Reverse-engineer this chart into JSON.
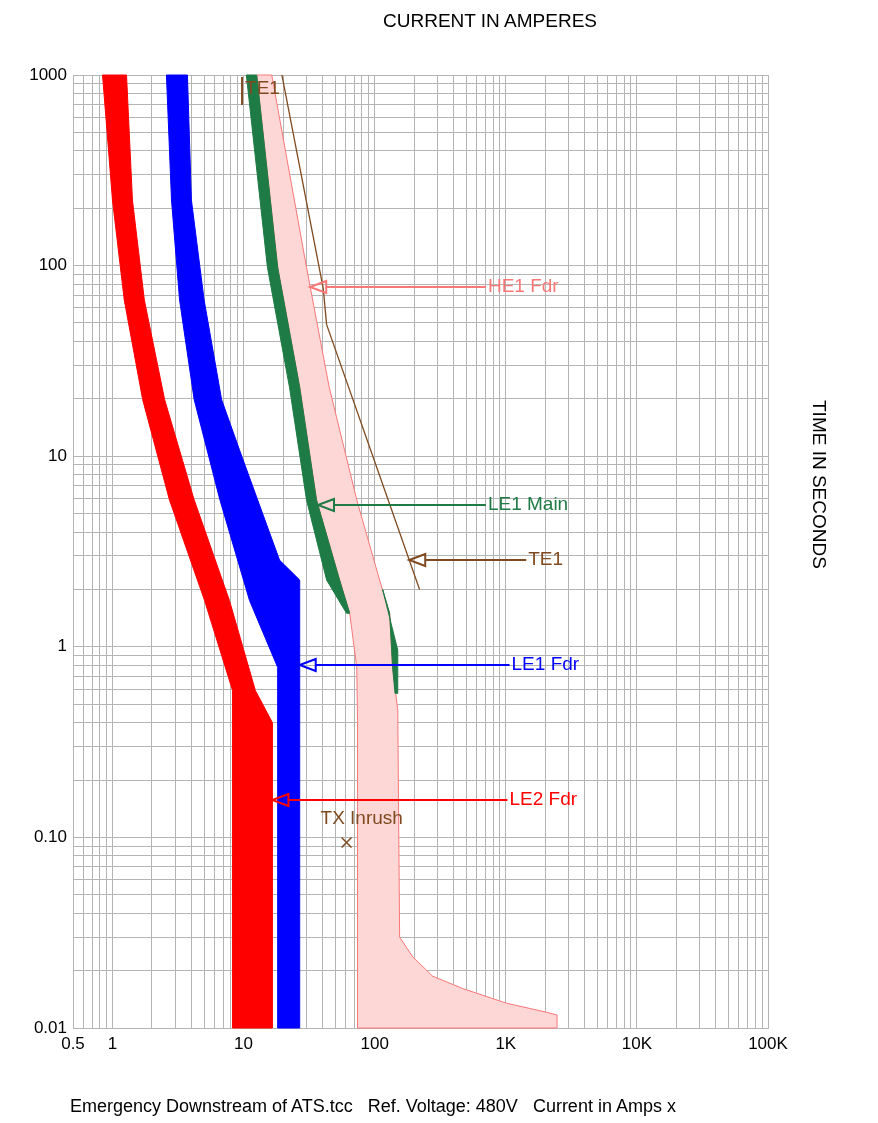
{
  "chart_data": {
    "type": "area",
    "xlabel": "CURRENT IN AMPERES",
    "ylabel": "TIME IN SECONDS",
    "log": "xy",
    "grid": true,
    "xlim": [
      0.5,
      100000
    ],
    "ylim": [
      0.01,
      1000
    ],
    "xticks": [
      0.5,
      {
        "value": 0.6,
        "label": null
      },
      {
        "value": 0.7,
        "label": null
      },
      {
        "value": 0.8,
        "label": null
      },
      {
        "value": 0.9,
        "label": null
      },
      1,
      {
        "value": 2,
        "label": null
      },
      {
        "value": 3,
        "label": null
      },
      {
        "value": 4,
        "label": null
      },
      {
        "value": 5,
        "label": null
      },
      {
        "value": 6,
        "label": null
      },
      {
        "value": 7,
        "label": null
      },
      {
        "value": 8,
        "label": null
      },
      {
        "value": 9,
        "label": null
      },
      10,
      {
        "value": 20,
        "label": null
      },
      {
        "value": 30,
        "label": null
      },
      {
        "value": 40,
        "label": null
      },
      {
        "value": 50,
        "label": null
      },
      {
        "value": 60,
        "label": null
      },
      {
        "value": 70,
        "label": null
      },
      {
        "value": 80,
        "label": null
      },
      {
        "value": 90,
        "label": null
      },
      100,
      {
        "value": 200,
        "label": null
      },
      {
        "value": 300,
        "label": null
      },
      {
        "value": 400,
        "label": null
      },
      {
        "value": 500,
        "label": null
      },
      {
        "value": 600,
        "label": null
      },
      {
        "value": 700,
        "label": null
      },
      {
        "value": 800,
        "label": null
      },
      {
        "value": 900,
        "label": null
      },
      {
        "value": 1000,
        "label": "1K"
      },
      {
        "value": 2000,
        "label": null
      },
      {
        "value": 3000,
        "label": null
      },
      {
        "value": 4000,
        "label": null
      },
      {
        "value": 5000,
        "label": null
      },
      {
        "value": 6000,
        "label": null
      },
      {
        "value": 7000,
        "label": null
      },
      {
        "value": 8000,
        "label": null
      },
      {
        "value": 9000,
        "label": null
      },
      {
        "value": 10000,
        "label": "10K"
      },
      {
        "value": 20000,
        "label": null
      },
      {
        "value": 30000,
        "label": null
      },
      {
        "value": 40000,
        "label": null
      },
      {
        "value": 50000,
        "label": null
      },
      {
        "value": 60000,
        "label": null
      },
      {
        "value": 70000,
        "label": null
      },
      {
        "value": 80000,
        "label": null
      },
      {
        "value": 90000,
        "label": null
      },
      {
        "value": 100000,
        "label": "100K"
      }
    ],
    "yticks": [
      0.01,
      {
        "value": 0.02,
        "label": null
      },
      {
        "value": 0.03,
        "label": null
      },
      {
        "value": 0.04,
        "label": null
      },
      {
        "value": 0.05,
        "label": null
      },
      {
        "value": 0.06,
        "label": null
      },
      {
        "value": 0.07,
        "label": null
      },
      {
        "value": 0.08,
        "label": null
      },
      {
        "value": 0.09,
        "label": null
      },
      {
        "value": 0.1,
        "label": "0.10"
      },
      {
        "value": 0.2,
        "label": null
      },
      {
        "value": 0.3,
        "label": null
      },
      {
        "value": 0.4,
        "label": null
      },
      {
        "value": 0.5,
        "label": null
      },
      {
        "value": 0.6,
        "label": null
      },
      {
        "value": 0.7,
        "label": null
      },
      {
        "value": 0.8,
        "label": null
      },
      {
        "value": 0.9,
        "label": null
      },
      1,
      {
        "value": 2,
        "label": null
      },
      {
        "value": 3,
        "label": null
      },
      {
        "value": 4,
        "label": null
      },
      {
        "value": 5,
        "label": null
      },
      {
        "value": 6,
        "label": null
      },
      {
        "value": 7,
        "label": null
      },
      {
        "value": 8,
        "label": null
      },
      {
        "value": 9,
        "label": null
      },
      10,
      {
        "value": 20,
        "label": null
      },
      {
        "value": 30,
        "label": null
      },
      {
        "value": 40,
        "label": null
      },
      {
        "value": 50,
        "label": null
      },
      {
        "value": 60,
        "label": null
      },
      {
        "value": 70,
        "label": null
      },
      {
        "value": 80,
        "label": null
      },
      {
        "value": 90,
        "label": null
      },
      100,
      {
        "value": 200,
        "label": null
      },
      {
        "value": 300,
        "label": null
      },
      {
        "value": 400,
        "label": null
      },
      {
        "value": 500,
        "label": null
      },
      {
        "value": 600,
        "label": null
      },
      {
        "value": 700,
        "label": null
      },
      {
        "value": 800,
        "label": null
      },
      {
        "value": 900,
        "label": null
      },
      1000
    ],
    "series": [
      {
        "type": "area",
        "name": "LE2 Fdr",
        "color": "#ff0000",
        "x": [
          0.84,
          1.0,
          1.23,
          1.7,
          2.72,
          5.04,
          8.24,
          8.24,
          16.6,
          16.6,
          12.3,
          7.8,
          4.2,
          2.5,
          1.75,
          1.42,
          1.28
        ],
        "values": [
          1000,
          221,
          66,
          19.8,
          5.9,
          1.75,
          0.59,
          0.01,
          0.01,
          0.4,
          0.59,
          1.75,
          5.9,
          19.8,
          66,
          221,
          1000
        ]
      },
      {
        "type": "area",
        "name": "LE1 Fdr",
        "color": "#0000ff",
        "x": [
          2.58,
          2.82,
          3.25,
          4.2,
          6.6,
          11.1,
          18.2,
          18.2,
          26.8,
          26.8,
          18.8,
          12.8,
          9.3,
          6.8,
          5.0,
          4.0,
          3.73
        ],
        "values": [
          1000,
          221,
          66,
          19.8,
          5.9,
          1.75,
          0.78,
          0.01,
          0.01,
          2.24,
          2.85,
          5.9,
          10.8,
          19.8,
          66,
          221,
          1000
        ]
      },
      {
        "type": "area",
        "name": "HE1 Fdr",
        "color": "#fdd6d6",
        "x": [
          12.6,
          18.2,
          26.8,
          36,
          54,
          64.5,
          73,
          74,
          74,
          2460,
          2460,
          2040,
          1010,
          470,
          277,
          195,
          155,
          150,
          137,
          130,
          109,
          73,
          45,
          30.2,
          16.4
        ],
        "values": [
          1000,
          98,
          23,
          5.9,
          2.24,
          1.5,
          0.78,
          0.41,
          0.01,
          0.01,
          0.0117,
          0.0121,
          0.0135,
          0.0161,
          0.0187,
          0.0236,
          0.03,
          0.465,
          0.78,
          1.5,
          2.24,
          5.9,
          23,
          98,
          1000
        ]
      },
      {
        "type": "area",
        "name": "LE1 Main",
        "color": "#1e7b45",
        "x": [
          10.5,
          15.2,
          22.4,
          30.2,
          43,
          61,
          64.5,
          54,
          36,
          26.8,
          18.2,
          12.6,
          null,
          115,
          150,
          150,
          143,
          137,
          130
        ],
        "values": [
          1000,
          98,
          23,
          5.9,
          2.24,
          1.5,
          1.5,
          2.24,
          5.9,
          23,
          98,
          1000,
          null,
          2.0,
          0.96,
          0.57,
          0.57,
          0.78,
          1.5
        ]
      },
      {
        "type": "line",
        "name": "TE1",
        "color": "#7f4a1f",
        "x": [
          19.6,
          40.5,
          43,
          220
        ],
        "values": [
          1000,
          76,
          49,
          2.0
        ]
      },
      {
        "type": "scatter",
        "name": "TX Inrush",
        "color": "#7f4a1f",
        "marker": "cross",
        "x": [
          61
        ],
        "values": [
          0.094
        ]
      }
    ],
    "annotations": [
      "Emergency Downstream of ATS.tcc   Ref. Voltage: 480V   Current in Amps x"
    ]
  }
}
